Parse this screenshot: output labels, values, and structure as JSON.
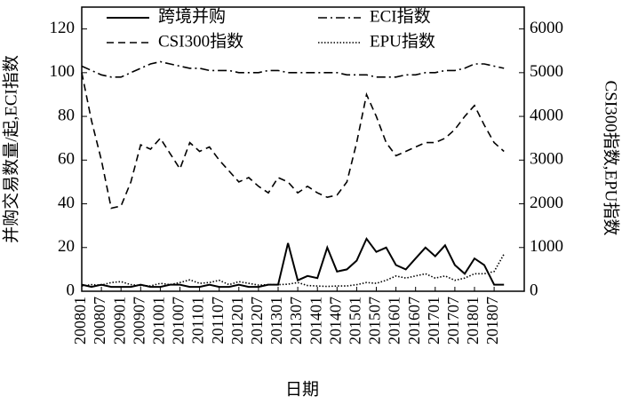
{
  "chart_data": {
    "type": "line",
    "x_label": "日期",
    "y_label": "并购交易数量/起,ECI指数",
    "y2_label": "CSI300指数,EPU指数",
    "categories": [
      "200801",
      null,
      "200807",
      null,
      "200901",
      null,
      "200907",
      null,
      "201001",
      null,
      "201007",
      null,
      "201101",
      null,
      "201107",
      null,
      "201201",
      null,
      "201207",
      null,
      "201301",
      null,
      "201307",
      null,
      "201401",
      null,
      "201407",
      null,
      "201501",
      null,
      "201507",
      null,
      "201601",
      null,
      "201607",
      null,
      "201701",
      null,
      "201707",
      null,
      "201801",
      null,
      "201807",
      null
    ],
    "series": [
      {
        "name": "跨境并购",
        "color": "#000000",
        "dash": "none",
        "values": [
          3,
          2,
          3,
          2,
          2,
          2,
          3,
          2,
          2,
          3,
          3,
          2,
          2,
          3,
          2,
          2,
          3,
          2,
          2,
          3,
          3,
          22,
          5,
          7,
          6,
          20,
          9,
          10,
          14,
          24,
          18,
          20,
          12,
          10,
          15,
          20,
          16,
          21,
          12,
          8,
          15,
          12,
          3,
          3
        ]
      },
      {
        "name": "ECI指数",
        "color": "#000000",
        "dash": "10,4,2,4",
        "values": [
          103,
          101,
          99,
          98,
          98,
          100,
          102,
          104,
          105,
          104,
          103,
          102,
          102,
          101,
          101,
          101,
          100,
          100,
          100,
          101,
          101,
          100,
          100,
          100,
          100,
          100,
          100,
          99,
          99,
          99,
          98,
          98,
          98,
          99,
          99,
          100,
          100,
          101,
          101,
          102,
          104,
          104,
          103,
          102
        ]
      },
      {
        "name": "CSI300指数",
        "color": "#000000",
        "dash": "8,5",
        "axis": "y2",
        "values": [
          5000,
          3900,
          3000,
          1900,
          1950,
          2500,
          3350,
          3250,
          3500,
          3150,
          2800,
          3400,
          3200,
          3300,
          3000,
          2750,
          2500,
          2600,
          2400,
          2250,
          2600,
          2500,
          2250,
          2400,
          2250,
          2150,
          2200,
          2500,
          3400,
          4500,
          4000,
          3400,
          3100,
          3200,
          3300,
          3400,
          3400,
          3500,
          3700,
          4000,
          4250,
          3800,
          3400,
          3200
        ]
      },
      {
        "name": "EPU指数",
        "color": "#000000",
        "dash": "1.5,2",
        "axis": "y2",
        "values": [
          120,
          150,
          140,
          200,
          220,
          150,
          130,
          120,
          180,
          150,
          200,
          260,
          180,
          200,
          250,
          150,
          220,
          180,
          140,
          150,
          150,
          160,
          200,
          130,
          120,
          110,
          120,
          120,
          150,
          200,
          180,
          250,
          350,
          300,
          350,
          400,
          300,
          350,
          250,
          300,
          400,
          400,
          450,
          850
        ]
      }
    ],
    "ylim": [
      0,
      130
    ],
    "yticks": [
      0,
      20,
      40,
      60,
      80,
      100,
      120
    ],
    "y2lim": [
      0,
      6500
    ],
    "y2ticks": [
      0,
      1000,
      2000,
      3000,
      4000,
      5000,
      6000
    ],
    "legend": "top"
  }
}
